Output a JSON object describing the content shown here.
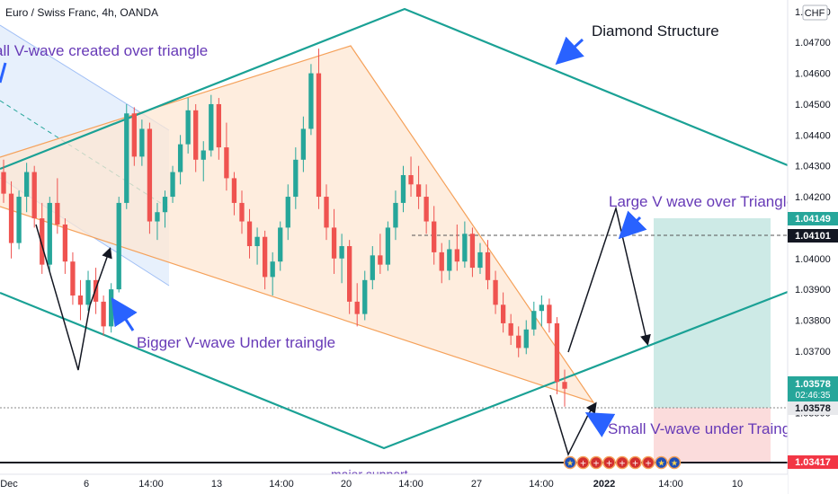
{
  "header": {
    "symbol_title": "Euro / Swiss Franc, 4h, OANDA",
    "currency_badge": "CHF"
  },
  "colors": {
    "bull": "#26a69a",
    "bear": "#ef5350",
    "diamond": "#1aa195",
    "triangle": "#f5a15a",
    "triangle_fill": "#fde7d3",
    "annotation": "#673ab7",
    "arrow_blue": "#2962ff",
    "target_zone": "#cdeae6",
    "stop_zone": "#fbdcdc"
  },
  "chart_data": {
    "type": "candlestick",
    "y_axis": {
      "ticks": [
        "1.04800",
        "1.04700",
        "1.04600",
        "1.04500",
        "1.04400",
        "1.04300",
        "1.04200",
        "1.04000",
        "1.03900",
        "1.03800",
        "1.03700",
        "1.03500"
      ],
      "ylim": [
        1.0333,
        1.0482
      ]
    },
    "x_axis": {
      "ticks": [
        "Dec",
        "6",
        "14:00",
        "13",
        "14:00",
        "20",
        "14:00",
        "27",
        "14:00",
        "2022",
        "14:00",
        "10"
      ]
    },
    "price_labels": [
      {
        "label": "1.04149",
        "style": "teal-box"
      },
      {
        "label": "1.04101",
        "style": "dark-box"
      },
      {
        "label": "1.03578",
        "sublabel": "02:46:35",
        "style": "teal-box"
      },
      {
        "label": "1.03578",
        "style": "light-box"
      },
      {
        "label": "1.03417",
        "style": "red-box"
      }
    ],
    "annotations": [
      {
        "text": "Diamond Structure"
      },
      {
        "text": "all V-wave created over triangle"
      },
      {
        "text": "Large V wave over Triangle!"
      },
      {
        "text": "Bigger V-wave Under traingle"
      },
      {
        "text": "Small V-wave under Traingle"
      },
      {
        "text": "major support"
      }
    ],
    "candles": [
      [
        1.0428,
        1.0432,
        1.0418,
        1.0421
      ],
      [
        1.0421,
        1.0425,
        1.04,
        1.0405
      ],
      [
        1.0405,
        1.0422,
        1.0403,
        1.042
      ],
      [
        1.042,
        1.0431,
        1.0415,
        1.0428
      ],
      [
        1.0428,
        1.043,
        1.041,
        1.0413
      ],
      [
        1.0413,
        1.0418,
        1.0395,
        1.0398
      ],
      [
        1.0398,
        1.042,
        1.0396,
        1.0418
      ],
      [
        1.0418,
        1.0426,
        1.0408,
        1.0411
      ],
      [
        1.0411,
        1.0413,
        1.0395,
        1.0399
      ],
      [
        1.0399,
        1.0402,
        1.0385,
        1.0388
      ],
      [
        1.0388,
        1.0393,
        1.038,
        1.0385
      ],
      [
        1.0385,
        1.0396,
        1.0383,
        1.0393
      ],
      [
        1.0393,
        1.0397,
        1.0382,
        1.0386
      ],
      [
        1.0386,
        1.0388,
        1.0375,
        1.0378
      ],
      [
        1.0378,
        1.0392,
        1.0376,
        1.039
      ],
      [
        1.039,
        1.042,
        1.0389,
        1.0418
      ],
      [
        1.0418,
        1.045,
        1.0416,
        1.0447
      ],
      [
        1.0447,
        1.0449,
        1.043,
        1.0433
      ],
      [
        1.0433,
        1.0445,
        1.043,
        1.0442
      ],
      [
        1.0442,
        1.0444,
        1.0408,
        1.0412
      ],
      [
        1.0412,
        1.0418,
        1.0406,
        1.0415
      ],
      [
        1.0415,
        1.0422,
        1.041,
        1.042
      ],
      [
        1.042,
        1.043,
        1.0418,
        1.0428
      ],
      [
        1.0428,
        1.044,
        1.0424,
        1.0437
      ],
      [
        1.0437,
        1.0452,
        1.0434,
        1.0448
      ],
      [
        1.0448,
        1.045,
        1.0428,
        1.0432
      ],
      [
        1.0432,
        1.0438,
        1.0425,
        1.0435
      ],
      [
        1.0435,
        1.0453,
        1.0433,
        1.045
      ],
      [
        1.045,
        1.0452,
        1.0432,
        1.0436
      ],
      [
        1.0436,
        1.0444,
        1.0422,
        1.0426
      ],
      [
        1.0426,
        1.0428,
        1.0414,
        1.0418
      ],
      [
        1.0418,
        1.0422,
        1.0408,
        1.0412
      ],
      [
        1.0412,
        1.0416,
        1.04,
        1.0404
      ],
      [
        1.0404,
        1.041,
        1.0398,
        1.0407
      ],
      [
        1.0407,
        1.0409,
        1.039,
        1.0394
      ],
      [
        1.0394,
        1.0402,
        1.0388,
        1.0399
      ],
      [
        1.0399,
        1.0412,
        1.0396,
        1.041
      ],
      [
        1.041,
        1.0424,
        1.0406,
        1.042
      ],
      [
        1.042,
        1.0436,
        1.0416,
        1.0432
      ],
      [
        1.0432,
        1.0446,
        1.0428,
        1.0442
      ],
      [
        1.0442,
        1.0463,
        1.044,
        1.046
      ],
      [
        1.046,
        1.0468,
        1.0416,
        1.042
      ],
      [
        1.042,
        1.0424,
        1.0406,
        1.041
      ],
      [
        1.041,
        1.0416,
        1.0395,
        1.04
      ],
      [
        1.04,
        1.0408,
        1.0392,
        1.0404
      ],
      [
        1.0404,
        1.0406,
        1.0382,
        1.0386
      ],
      [
        1.0386,
        1.0392,
        1.0378,
        1.0382
      ],
      [
        1.0382,
        1.0396,
        1.038,
        1.0393
      ],
      [
        1.0393,
        1.0404,
        1.039,
        1.0401
      ],
      [
        1.0401,
        1.0408,
        1.0395,
        1.0398
      ],
      [
        1.0398,
        1.0412,
        1.0396,
        1.041
      ],
      [
        1.041,
        1.0422,
        1.0406,
        1.0418
      ],
      [
        1.0418,
        1.043,
        1.0415,
        1.0427
      ],
      [
        1.0427,
        1.0433,
        1.042,
        1.0424
      ],
      [
        1.0424,
        1.043,
        1.0416,
        1.042
      ],
      [
        1.042,
        1.0424,
        1.0408,
        1.0412
      ],
      [
        1.0412,
        1.0417,
        1.0398,
        1.0402
      ],
      [
        1.0402,
        1.0405,
        1.0392,
        1.0396
      ],
      [
        1.0396,
        1.0406,
        1.0393,
        1.0403
      ],
      [
        1.0403,
        1.0411,
        1.0396,
        1.0399
      ],
      [
        1.0399,
        1.0412,
        1.0397,
        1.0408
      ],
      [
        1.0408,
        1.041,
        1.0394,
        1.0397
      ],
      [
        1.0397,
        1.0405,
        1.0395,
        1.0402
      ],
      [
        1.0402,
        1.0406,
        1.039,
        1.0393
      ],
      [
        1.0393,
        1.0396,
        1.0382,
        1.0385
      ],
      [
        1.0385,
        1.0389,
        1.0376,
        1.0379
      ],
      [
        1.0379,
        1.0382,
        1.0372,
        1.0375
      ],
      [
        1.0375,
        1.0378,
        1.0368,
        1.0371
      ],
      [
        1.0371,
        1.038,
        1.0369,
        1.0377
      ],
      [
        1.0377,
        1.0386,
        1.0375,
        1.0383
      ],
      [
        1.0383,
        1.0388,
        1.0378,
        1.0385
      ],
      [
        1.0385,
        1.0387,
        1.0376,
        1.0379
      ],
      [
        1.0379,
        1.0381,
        1.0356,
        1.036
      ],
      [
        1.036,
        1.0364,
        1.0352,
        1.03578
      ]
    ]
  }
}
